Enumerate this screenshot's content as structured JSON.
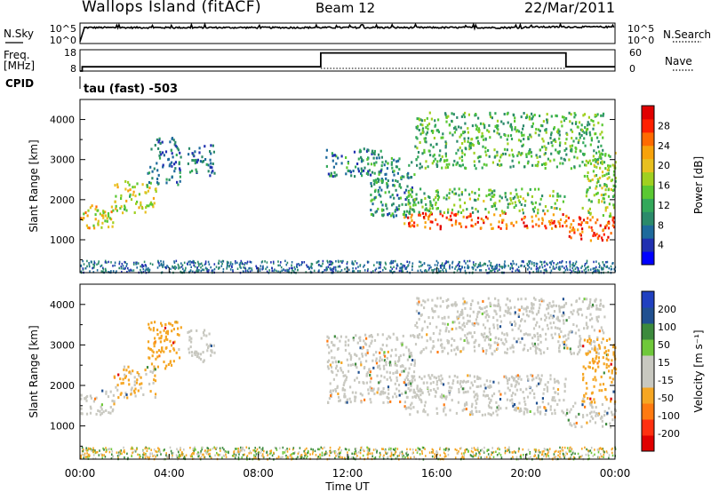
{
  "header": {
    "station": "Wallops Island (fitACF)",
    "beam": "Beam 12",
    "date": "22/Mar/2011"
  },
  "left_labels": {
    "nsky": "N.Sky",
    "freq_line1": "Freq.",
    "freq_line2": "[MHz]",
    "cpid": "CPID"
  },
  "right_labels": {
    "nsearch": "N.Search",
    "nave": "Nave"
  },
  "cpid_text": "tau (fast) -503",
  "colors": {
    "power_scale": [
      "#0000ff",
      "#2030b0",
      "#1e6a9c",
      "#2b8a6a",
      "#33a85a",
      "#5ac832",
      "#a0d020",
      "#e8c020",
      "#f7a20a",
      "#ff6a00",
      "#ff2000",
      "#e00000"
    ],
    "velocity_scale": [
      "#2040c0",
      "#205090",
      "#3c8a3c",
      "#6fc83a",
      "#c8c8c0",
      "#c8c8c0",
      "#f5a623",
      "#ff7a10",
      "#ff3010",
      "#e00000"
    ]
  },
  "chart_data": [
    {
      "type": "line",
      "name": "noise-panel",
      "left_axis_label": "N.Sky",
      "right_axis_label": "N.Search",
      "left_ticks": [
        "10^5",
        "10^0"
      ],
      "right_ticks": [
        "10^5",
        "10^0"
      ],
      "xlim_hours": [
        0,
        24
      ],
      "series": [
        {
          "name": "N.Sky",
          "x": [
            0,
            0.1,
            0.2,
            1,
            4,
            8,
            12,
            16,
            20,
            24
          ],
          "y": [
            0.1,
            0.1,
            0.78,
            0.8,
            0.8,
            0.8,
            0.8,
            0.8,
            0.82,
            0.82
          ]
        }
      ]
    },
    {
      "type": "line",
      "name": "freq-panel",
      "left_ticks": [
        "18",
        "8"
      ],
      "right_ticks": [
        "60",
        "0"
      ],
      "xlim_hours": [
        0,
        24
      ],
      "series": [
        {
          "name": "Freq",
          "x": [
            0,
            0.1,
            0.1,
            10.8,
            10.8,
            21.8,
            21.8,
            24
          ],
          "y": [
            8,
            8,
            10,
            10,
            16.5,
            16.5,
            10,
            10
          ]
        },
        {
          "name": "Nave",
          "x": [
            0,
            24
          ],
          "y": [
            1,
            1
          ]
        }
      ]
    },
    {
      "type": "heatmap",
      "name": "power-panel",
      "ylabel": "Slant Range [km]",
      "yticks": [
        1000,
        2000,
        3000,
        4000
      ],
      "ylim": [
        180,
        4500
      ],
      "xlim_hours": [
        0,
        24
      ],
      "colorbar_label": "Power [dB]",
      "colorbar_ticks": [
        4,
        8,
        12,
        16,
        20,
        24,
        28
      ],
      "colorbar_range": [
        0,
        32
      ],
      "bands": [
        {
          "t0": 0,
          "t1": 1.5,
          "r0": 1300,
          "r1": 1900,
          "level": 20
        },
        {
          "t0": 1.5,
          "t1": 3.4,
          "r0": 1700,
          "r1": 2500,
          "level": 18
        },
        {
          "t0": 3.0,
          "t1": 4.5,
          "r0": 2400,
          "r1": 3600,
          "level": 8
        },
        {
          "t0": 4.8,
          "t1": 6.0,
          "r0": 2600,
          "r1": 3400,
          "level": 8
        },
        {
          "t0": 11.0,
          "t1": 13.5,
          "r0": 2600,
          "r1": 3300,
          "level": 9
        },
        {
          "t0": 13.0,
          "t1": 15.0,
          "r0": 1600,
          "r1": 3100,
          "level": 10
        },
        {
          "t0": 14.5,
          "t1": 21.8,
          "r0": 1300,
          "r1": 1700,
          "level": 26
        },
        {
          "t0": 14.5,
          "t1": 21.8,
          "r0": 1700,
          "r1": 2300,
          "level": 14
        },
        {
          "t0": 15.0,
          "t1": 23.5,
          "r0": 2800,
          "r1": 4200,
          "level": 13
        },
        {
          "t0": 21.8,
          "t1": 24,
          "r0": 1000,
          "r1": 1600,
          "level": 26
        },
        {
          "t0": 22.5,
          "t1": 24,
          "r0": 1600,
          "r1": 3200,
          "level": 16
        }
      ]
    },
    {
      "type": "heatmap",
      "name": "velocity-panel",
      "ylabel": "Slant Range [km]",
      "yticks": [
        1000,
        2000,
        3000,
        4000
      ],
      "ylim": [
        180,
        4500
      ],
      "xlim_hours": [
        0,
        24
      ],
      "xticks": [
        "00:00",
        "04:00",
        "08:00",
        "12:00",
        "16:00",
        "20:00",
        "00:00"
      ],
      "xlabel": "Time UT",
      "colorbar_label": "Velocity [m s⁻¹]",
      "colorbar_ticks": [
        200,
        100,
        50,
        15,
        -15,
        -50,
        -100,
        -200
      ],
      "bands": [
        {
          "t0": 0,
          "t1": 1.5,
          "r0": 1300,
          "r1": 1900,
          "velocity": 0
        },
        {
          "t0": 1.5,
          "t1": 3.4,
          "r0": 1700,
          "r1": 2500,
          "velocity": -20
        },
        {
          "t0": 3.0,
          "t1": 4.5,
          "r0": 2400,
          "r1": 3600,
          "velocity": -40
        },
        {
          "t0": 4.8,
          "t1": 6.0,
          "r0": 2600,
          "r1": 3400,
          "velocity": 0
        },
        {
          "t0": 11.0,
          "t1": 15.0,
          "r0": 1600,
          "r1": 3300,
          "velocity": 0
        },
        {
          "t0": 14.5,
          "t1": 21.8,
          "r0": 1300,
          "r1": 2300,
          "velocity": 0
        },
        {
          "t0": 15.0,
          "t1": 23.5,
          "r0": 2800,
          "r1": 4200,
          "velocity": 0
        },
        {
          "t0": 21.8,
          "t1": 24,
          "r0": 1000,
          "r1": 1600,
          "velocity": 0
        },
        {
          "t0": 22.5,
          "t1": 24,
          "r0": 1600,
          "r1": 3200,
          "velocity": -40
        }
      ]
    }
  ]
}
